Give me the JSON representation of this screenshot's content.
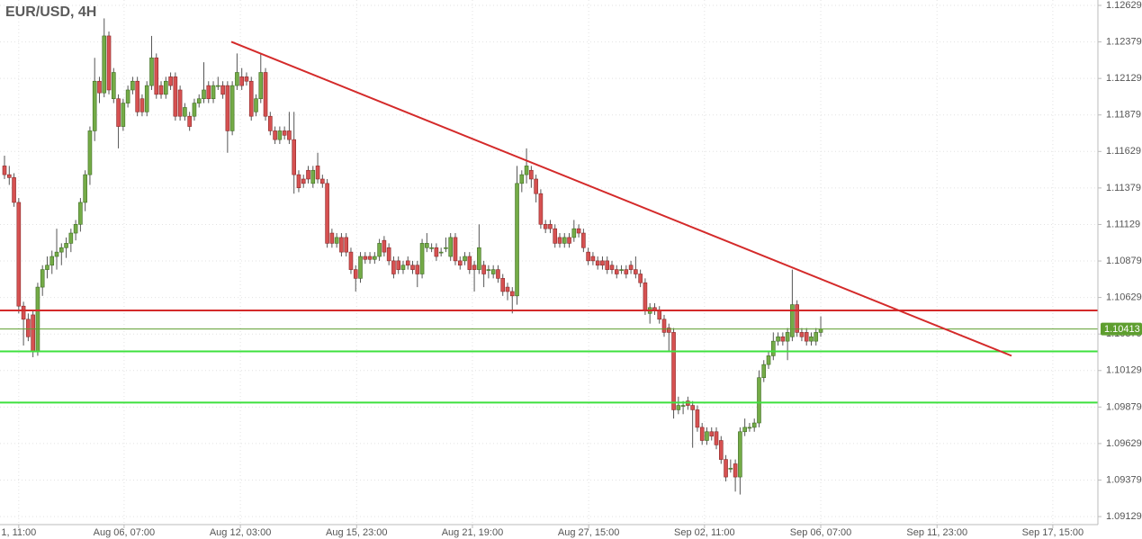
{
  "chart_data": {
    "type": "candlestick",
    "title": "EUR/USD, 4H",
    "up_color": "#74ab47",
    "down_color": "#d65151",
    "grid": true,
    "xlim": [
      -0.95,
      230.4
    ],
    "xticks": [
      {
        "value": 3,
        "label": "1, 11:00"
      },
      {
        "value": 25.2,
        "label": "Aug 06, 07:00"
      },
      {
        "value": 49.7,
        "label": "Aug 12, 03:00"
      },
      {
        "value": 74.2,
        "label": "Aug 15, 23:00"
      },
      {
        "value": 98.6,
        "label": "Aug 21, 19:00"
      },
      {
        "value": 123.1,
        "label": "Aug 27, 15:00"
      },
      {
        "value": 147.5,
        "label": "Sep 02, 11:00"
      },
      {
        "value": 172,
        "label": "Sep 06, 07:00"
      },
      {
        "value": 196.5,
        "label": "Sep 11, 23:00"
      },
      {
        "value": 220.9,
        "label": "Sep 17, 15:00"
      }
    ],
    "ylim": [
      1.09074,
      1.12666
    ],
    "yticks": [
      1.12629,
      1.12379,
      1.12129,
      1.11879,
      1.11629,
      1.11379,
      1.11129,
      1.10879,
      1.10629,
      1.10379,
      1.10129,
      1.09879,
      1.09629,
      1.09379,
      1.09129
    ],
    "price_lines": [
      {
        "value": 1.1054,
        "color": "#d42a2a"
      },
      {
        "value": 1.1026,
        "color": "#3de03d"
      },
      {
        "value": 1.0991,
        "color": "#3de03d"
      }
    ],
    "last_price": {
      "value": 1.10413,
      "color": "#5e9e2f"
    },
    "trendline": {
      "x": [
        47.8,
        212.2
      ],
      "y": [
        1.1238,
        1.1023
      ],
      "color": "#d42a2a"
    },
    "ohlc": [
      [
        1.1153,
        1.116,
        1.1144,
        1.1147
      ],
      [
        1.1147,
        1.1153,
        1.114,
        1.1145
      ],
      [
        1.1145,
        1.1148,
        1.1125,
        1.1128
      ],
      [
        1.1128,
        1.1131,
        1.1052,
        1.1057
      ],
      [
        1.1057,
        1.106,
        1.103,
        1.1048
      ],
      [
        1.1048,
        1.1052,
        1.1033,
        1.1036
      ],
      [
        1.1051,
        1.1054,
        1.1022,
        1.1026
      ],
      [
        1.1026,
        1.1073,
        1.1023,
        1.107
      ],
      [
        1.107,
        1.1085,
        1.1064,
        1.1082
      ],
      [
        1.1082,
        1.1091,
        1.1076,
        1.1085
      ],
      [
        1.1085,
        1.1095,
        1.1079,
        1.1091
      ],
      [
        1.1091,
        1.111,
        1.1082,
        1.1094
      ],
      [
        1.1094,
        1.11,
        1.1085,
        1.1097
      ],
      [
        1.1097,
        1.1104,
        1.109,
        1.11
      ],
      [
        1.11,
        1.111,
        1.1094,
        1.1107
      ],
      [
        1.1107,
        1.1116,
        1.1102,
        1.1113
      ],
      [
        1.1113,
        1.1131,
        1.1108,
        1.1128
      ],
      [
        1.1128,
        1.115,
        1.1122,
        1.1147
      ],
      [
        1.1147,
        1.118,
        1.114,
        1.1177
      ],
      [
        1.1177,
        1.1227,
        1.117,
        1.1211
      ],
      [
        1.1211,
        1.1214,
        1.1196,
        1.1203
      ],
      [
        1.1203,
        1.1254,
        1.12,
        1.1242
      ],
      [
        1.1242,
        1.1245,
        1.1202,
        1.1205
      ],
      [
        1.1199,
        1.122,
        1.1196,
        1.1217
      ],
      [
        1.1199,
        1.1202,
        1.1165,
        1.118
      ],
      [
        1.118,
        1.1199,
        1.1177,
        1.1196
      ],
      [
        1.1196,
        1.1208,
        1.1193,
        1.1205
      ],
      [
        1.1205,
        1.1214,
        1.1202,
        1.1211
      ],
      [
        1.1211,
        1.1214,
        1.1187,
        1.119
      ],
      [
        1.1199,
        1.1202,
        1.1187,
        1.119
      ],
      [
        1.119,
        1.1211,
        1.1187,
        1.1208
      ],
      [
        1.1208,
        1.1242,
        1.1205,
        1.1227
      ],
      [
        1.1227,
        1.123,
        1.1199,
        1.1202
      ],
      [
        1.1208,
        1.1211,
        1.1199,
        1.1202
      ],
      [
        1.1202,
        1.1214,
        1.1199,
        1.1211
      ],
      [
        1.1214,
        1.1217,
        1.1205,
        1.1208
      ],
      [
        1.1214,
        1.1217,
        1.1184,
        1.1187
      ],
      [
        1.1205,
        1.1208,
        1.1184,
        1.1187
      ],
      [
        1.1187,
        1.1196,
        1.1184,
        1.1193
      ],
      [
        1.1187,
        1.119,
        1.1177,
        1.118
      ],
      [
        1.1187,
        1.1199,
        1.1184,
        1.1196
      ],
      [
        1.1196,
        1.1202,
        1.1193,
        1.1199
      ],
      [
        1.1199,
        1.1224,
        1.1196,
        1.1205
      ],
      [
        1.1208,
        1.1211,
        1.1196,
        1.1199
      ],
      [
        1.1199,
        1.1211,
        1.1196,
        1.1208
      ],
      [
        1.1208,
        1.1214,
        1.1205,
        1.1208
      ],
      [
        1.1208,
        1.1211,
        1.1199,
        1.1202
      ],
      [
        1.1208,
        1.1211,
        1.1162,
        1.1177
      ],
      [
        1.1177,
        1.1211,
        1.1174,
        1.1208
      ],
      [
        1.1208,
        1.123,
        1.1205,
        1.1217
      ],
      [
        1.1214,
        1.122,
        1.1205,
        1.1208
      ],
      [
        1.1214,
        1.1217,
        1.1208,
        1.1211
      ],
      [
        1.1211,
        1.1214,
        1.1184,
        1.1187
      ],
      [
        1.119,
        1.1202,
        1.1187,
        1.1199
      ],
      [
        1.1199,
        1.123,
        1.1196,
        1.1217
      ],
      [
        1.1217,
        1.122,
        1.1184,
        1.1187
      ],
      [
        1.1187,
        1.119,
        1.1174,
        1.1177
      ],
      [
        1.1177,
        1.118,
        1.1168,
        1.1171
      ],
      [
        1.1171,
        1.118,
        1.1168,
        1.1177
      ],
      [
        1.1177,
        1.118,
        1.1171,
        1.1174
      ],
      [
        1.1177,
        1.119,
        1.1168,
        1.1171
      ],
      [
        1.1171,
        1.119,
        1.1134,
        1.1147
      ],
      [
        1.1147,
        1.115,
        1.1135,
        1.1138
      ],
      [
        1.1144,
        1.1147,
        1.1138,
        1.1141
      ],
      [
        1.115,
        1.1153,
        1.1141,
        1.1144
      ],
      [
        1.1141,
        1.1153,
        1.1138,
        1.115
      ],
      [
        1.1153,
        1.1162,
        1.1141,
        1.1144
      ],
      [
        1.1144,
        1.1147,
        1.1138,
        1.1141
      ],
      [
        1.1141,
        1.1144,
        1.1097,
        1.11
      ],
      [
        1.1107,
        1.111,
        1.1097,
        1.11
      ],
      [
        1.11,
        1.1107,
        1.1097,
        1.1104
      ],
      [
        1.1104,
        1.1107,
        1.1091,
        1.1094
      ],
      [
        1.1104,
        1.1107,
        1.1091,
        1.1094
      ],
      [
        1.1094,
        1.1097,
        1.1079,
        1.1082
      ],
      [
        1.1082,
        1.1085,
        1.1067,
        1.1076
      ],
      [
        1.1076,
        1.1094,
        1.1073,
        1.1091
      ],
      [
        1.1091,
        1.1094,
        1.1086,
        1.1089
      ],
      [
        1.1091,
        1.1094,
        1.1086,
        1.1089
      ],
      [
        1.1089,
        1.1094,
        1.1086,
        1.1091
      ],
      [
        1.1091,
        1.1103,
        1.1088,
        1.11
      ],
      [
        1.1102,
        1.1105,
        1.1091,
        1.1094
      ],
      [
        1.1097,
        1.11,
        1.1085,
        1.1088
      ],
      [
        1.1088,
        1.1091,
        1.1076,
        1.1079
      ],
      [
        1.1088,
        1.1091,
        1.1079,
        1.1082
      ],
      [
        1.1082,
        1.1088,
        1.1079,
        1.1085
      ],
      [
        1.1088,
        1.1091,
        1.1082,
        1.1085
      ],
      [
        1.1085,
        1.1088,
        1.1079,
        1.1082
      ],
      [
        1.1085,
        1.1088,
        1.107,
        1.1079
      ],
      [
        1.1079,
        1.1103,
        1.1076,
        1.11
      ],
      [
        1.1097,
        1.1107,
        1.1094,
        1.11
      ],
      [
        1.1097,
        1.11,
        1.1094,
        1.1097
      ],
      [
        1.1097,
        1.11,
        1.1088,
        1.1091
      ],
      [
        1.1094,
        1.1097,
        1.1091,
        1.1094
      ],
      [
        1.1097,
        1.1104,
        1.1094,
        1.1097
      ],
      [
        1.1091,
        1.1107,
        1.1088,
        1.1104
      ],
      [
        1.1104,
        1.1107,
        1.1085,
        1.1088
      ],
      [
        1.1088,
        1.1091,
        1.1082,
        1.1085
      ],
      [
        1.1088,
        1.1094,
        1.1085,
        1.1091
      ],
      [
        1.1091,
        1.1094,
        1.1079,
        1.1082
      ],
      [
        1.1085,
        1.1088,
        1.1067,
        1.1082
      ],
      [
        1.1082,
        1.1113,
        1.1079,
        1.1097
      ],
      [
        1.1085,
        1.1088,
        1.107,
        1.1079
      ],
      [
        1.1082,
        1.1085,
        1.1076,
        1.1082
      ],
      [
        1.1079,
        1.1085,
        1.1076,
        1.1082
      ],
      [
        1.1082,
        1.1085,
        1.1073,
        1.1076
      ],
      [
        1.1076,
        1.1079,
        1.1064,
        1.1067
      ],
      [
        1.107,
        1.1073,
        1.1061,
        1.1067
      ],
      [
        1.1067,
        1.107,
        1.1052,
        1.1064
      ],
      [
        1.1064,
        1.1153,
        1.1058,
        1.1141
      ],
      [
        1.1141,
        1.115,
        1.1135,
        1.1147
      ],
      [
        1.1147,
        1.1165,
        1.1141,
        1.1153
      ],
      [
        1.115,
        1.1153,
        1.1138,
        1.1144
      ],
      [
        1.1144,
        1.1147,
        1.1128,
        1.1134
      ],
      [
        1.1134,
        1.1137,
        1.111,
        1.1113
      ],
      [
        1.1113,
        1.1116,
        1.1107,
        1.111
      ],
      [
        1.1113,
        1.1116,
        1.1107,
        1.111
      ],
      [
        1.111,
        1.1113,
        1.1097,
        1.11
      ],
      [
        1.1104,
        1.1107,
        1.1097,
        1.11
      ],
      [
        1.11,
        1.1107,
        1.1097,
        1.1104
      ],
      [
        1.1104,
        1.1107,
        1.1097,
        1.11
      ],
      [
        1.1104,
        1.1116,
        1.1101,
        1.111
      ],
      [
        1.111,
        1.1113,
        1.1104,
        1.1107
      ],
      [
        1.1107,
        1.111,
        1.1094,
        1.1097
      ],
      [
        1.1094,
        1.1097,
        1.1085,
        1.1088
      ],
      [
        1.1091,
        1.1094,
        1.1085,
        1.1088
      ],
      [
        1.1088,
        1.1091,
        1.1082,
        1.1085
      ],
      [
        1.1088,
        1.1091,
        1.1082,
        1.1085
      ],
      [
        1.1088,
        1.1091,
        1.1079,
        1.1082
      ],
      [
        1.1085,
        1.1088,
        1.1079,
        1.1082
      ],
      [
        1.1082,
        1.1085,
        1.1076,
        1.1079
      ],
      [
        1.1082,
        1.1085,
        1.1079,
        1.1082
      ],
      [
        1.1082,
        1.1085,
        1.1076,
        1.1079
      ],
      [
        1.1085,
        1.1088,
        1.1079,
        1.1082
      ],
      [
        1.1082,
        1.1091,
        1.1076,
        1.1079
      ],
      [
        1.1079,
        1.1082,
        1.107,
        1.1073
      ],
      [
        1.1073,
        1.1076,
        1.1051,
        1.1054
      ],
      [
        1.1052,
        1.1059,
        1.1045,
        1.1056
      ],
      [
        1.1056,
        1.1059,
        1.1051,
        1.1054
      ],
      [
        1.1054,
        1.1057,
        1.1045,
        1.1048
      ],
      [
        1.1048,
        1.1051,
        1.1036,
        1.1039
      ],
      [
        1.1042,
        1.1045,
        1.1026,
        1.1039
      ],
      [
        1.1039,
        1.1042,
        1.098,
        1.0986
      ],
      [
        1.0986,
        1.0995,
        1.0983,
        1.0989
      ],
      [
        1.0989,
        1.0992,
        1.0983,
        1.0989
      ],
      [
        1.0992,
        1.0995,
        1.0986,
        1.0989
      ],
      [
        1.0989,
        1.0992,
        1.096,
        1.0986
      ],
      [
        1.0986,
        1.0989,
        1.0971,
        1.0974
      ],
      [
        1.0974,
        1.0977,
        1.0962,
        1.0965
      ],
      [
        1.0965,
        1.0974,
        1.0962,
        1.0971
      ],
      [
        1.0971,
        1.0974,
        1.0965,
        1.0968
      ],
      [
        1.0971,
        1.0974,
        1.0959,
        1.0962
      ],
      [
        1.0965,
        1.0968,
        1.0949,
        1.0952
      ],
      [
        1.0952,
        1.0955,
        1.0937,
        1.094
      ],
      [
        1.0946,
        1.0952,
        1.0943,
        1.0946
      ],
      [
        1.0949,
        1.0952,
        1.093,
        1.094
      ],
      [
        1.094,
        1.0974,
        1.0928,
        1.0971
      ],
      [
        1.0971,
        1.098,
        1.0968,
        1.0974
      ],
      [
        1.0974,
        1.0977,
        1.0971,
        1.0974
      ],
      [
        1.0974,
        1.098,
        1.0971,
        1.0977
      ],
      [
        1.0977,
        1.1013,
        1.0974,
        1.1008
      ],
      [
        1.1008,
        1.102,
        1.1005,
        1.1017
      ],
      [
        1.1017,
        1.1026,
        1.1014,
        1.1023
      ],
      [
        1.1023,
        1.1039,
        1.102,
        1.1033
      ],
      [
        1.1033,
        1.1039,
        1.103,
        1.1036
      ],
      [
        1.1036,
        1.1039,
        1.103,
        1.1033
      ],
      [
        1.1033,
        1.1042,
        1.102,
        1.1039
      ],
      [
        1.1036,
        1.1082,
        1.1033,
        1.1058
      ],
      [
        1.1058,
        1.1061,
        1.1036,
        1.1039
      ],
      [
        1.1039,
        1.1042,
        1.1033,
        1.1036
      ],
      [
        1.1039,
        1.1042,
        1.103,
        1.1033
      ],
      [
        1.1033,
        1.1039,
        1.103,
        1.1036
      ],
      [
        1.1033,
        1.1042,
        1.103,
        1.1039
      ],
      [
        1.1039,
        1.105,
        1.1036,
        1.10413
      ]
    ]
  }
}
